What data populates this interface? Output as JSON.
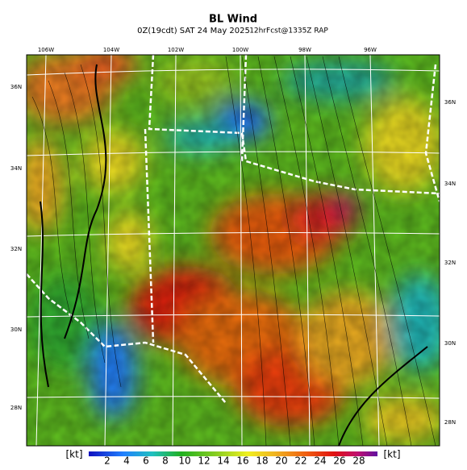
{
  "title": "BL Wind",
  "subtitle": "0Z(19cdt) SAT 24 May 2025",
  "run_info": "12hrFcst@1335Z RAP",
  "lon_labels": [
    "106W",
    "104W",
    "102W",
    "100W",
    "98W",
    "96W"
  ],
  "lat_labels_left": [
    "36N",
    "34N",
    "32N",
    "30N",
    "28N"
  ],
  "lat_labels_right": [
    "36N",
    "34N",
    "32N",
    "30N",
    "28N"
  ],
  "colorbar": {
    "unit_left": "[kt]",
    "unit_right": "[kt]",
    "ticks": [
      2,
      4,
      6,
      8,
      10,
      12,
      14,
      16,
      18,
      20,
      22,
      24,
      26,
      28
    ]
  }
}
